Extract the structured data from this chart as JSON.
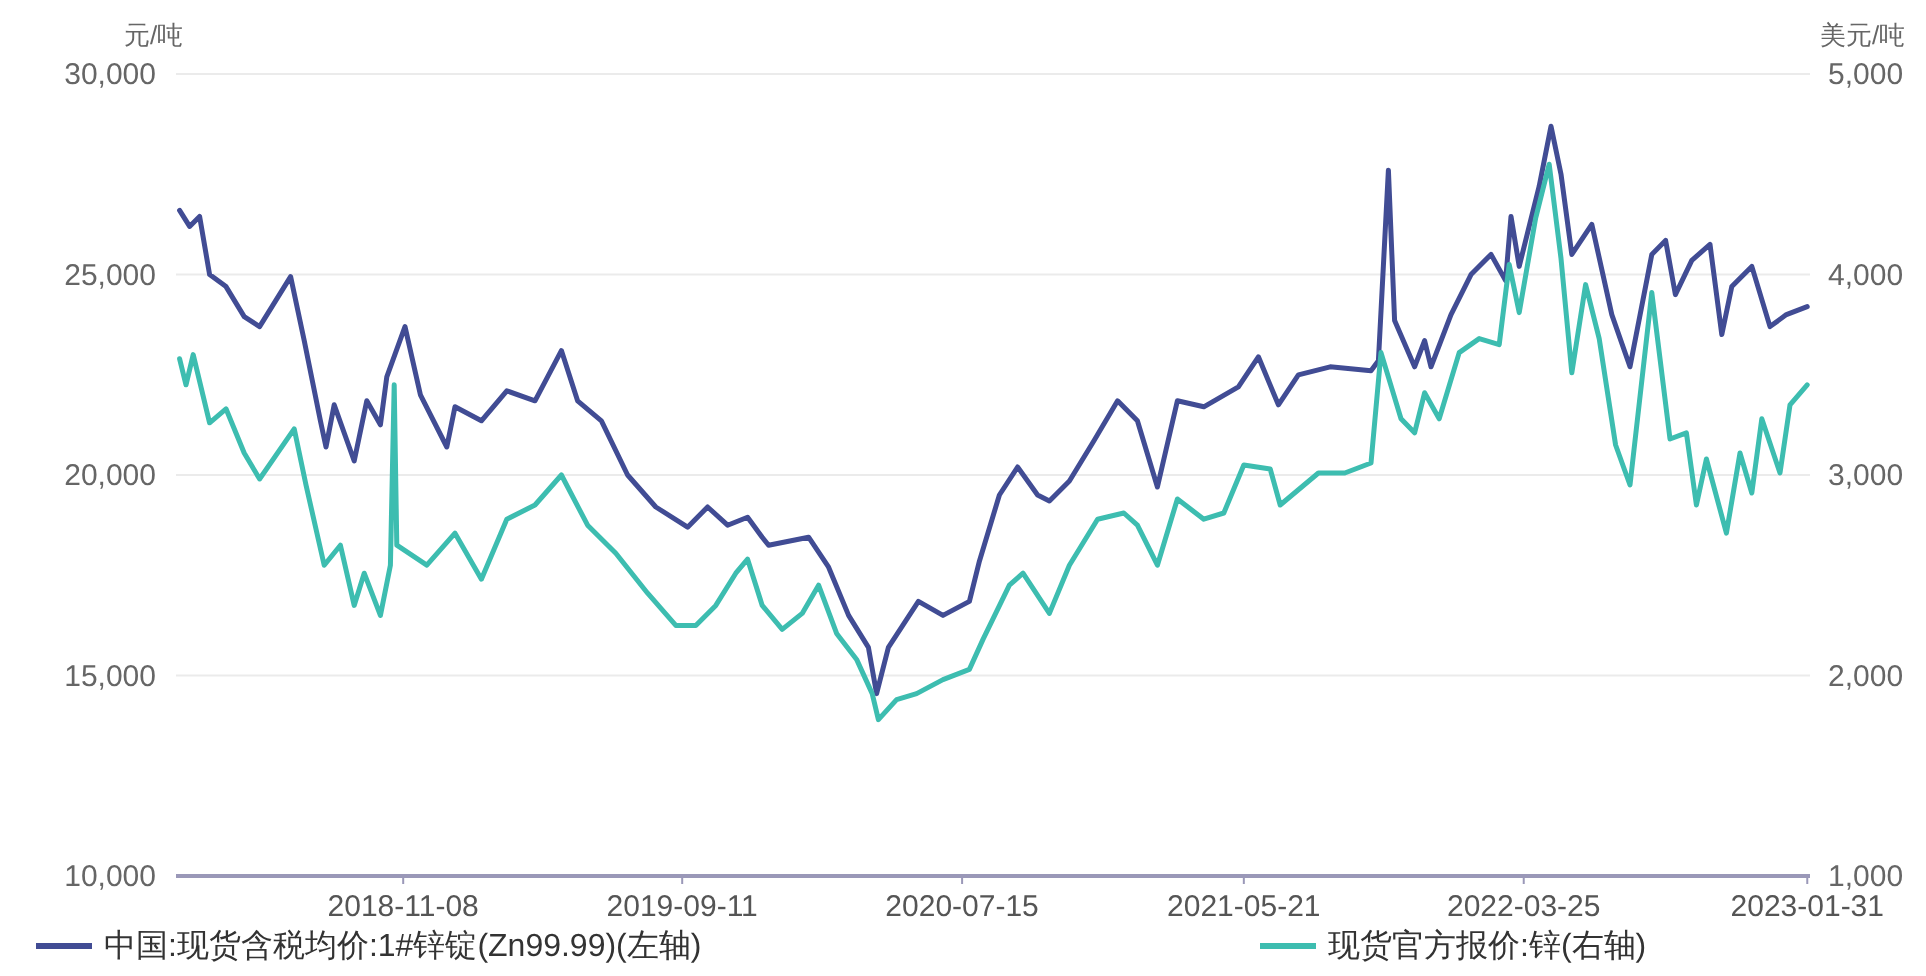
{
  "chart_data": {
    "type": "line",
    "ylabel": "元/吨",
    "y2label": "美元/吨",
    "xlim": [
      "2018-03-03",
      "2023-02-03"
    ],
    "xticks": [
      "2018-11-08",
      "2019-09-11",
      "2020-07-15",
      "2021-05-21",
      "2022-03-25",
      "2023-01-31"
    ],
    "ylim": [
      10000,
      30000
    ],
    "yticks": [
      {
        "value": 10000,
        "label": "10,000"
      },
      {
        "value": 15000,
        "label": "15,000"
      },
      {
        "value": 20000,
        "label": "20,000"
      },
      {
        "value": 25000,
        "label": "25,000"
      },
      {
        "value": 30000,
        "label": "30,000"
      }
    ],
    "y2lim": [
      1000,
      5000
    ],
    "y2ticks": [
      {
        "value": 1000,
        "label": "1,000"
      },
      {
        "value": 2000,
        "label": "2,000"
      },
      {
        "value": 3000,
        "label": "3,000"
      },
      {
        "value": 4000,
        "label": "4,000"
      },
      {
        "value": 5000,
        "label": "5,000"
      }
    ],
    "grid": "y",
    "legend": "bottom",
    "series": [
      {
        "name": "中国:现货含税均价:1#锌锭(Zn99.99)(左轴)",
        "color": "#414c94",
        "axis": "y",
        "x": [
          "2018-03-07",
          "2018-03-18",
          "2018-03-29",
          "2018-04-09",
          "2018-04-27",
          "2018-05-17",
          "2018-06-03",
          "2018-07-07",
          "2018-07-22",
          "2018-08-09",
          "2018-08-15",
          "2018-08-24",
          "2018-09-15",
          "2018-09-29",
          "2018-10-14",
          "2018-10-21",
          "2018-11-10",
          "2018-11-27",
          "2018-12-26",
          "2019-01-04",
          "2019-02-02",
          "2019-03-02",
          "2019-04-02",
          "2019-05-01",
          "2019-05-19",
          "2019-06-14",
          "2019-07-13",
          "2019-08-13",
          "2019-09-17",
          "2019-10-09",
          "2019-10-31",
          "2019-11-22",
          "2019-12-08",
          "2019-12-15",
          "2020-01-28",
          "2020-02-19",
          "2020-03-12",
          "2020-04-03",
          "2020-04-12",
          "2020-04-25",
          "2020-05-28",
          "2020-06-24",
          "2020-07-23",
          "2020-08-03",
          "2020-08-25",
          "2020-09-14",
          "2020-10-06",
          "2020-10-19",
          "2020-11-10",
          "2020-12-07",
          "2021-01-02",
          "2021-01-24",
          "2021-02-15",
          "2021-03-09",
          "2021-04-07",
          "2021-05-15",
          "2021-06-06",
          "2021-06-28",
          "2021-07-20",
          "2021-08-24",
          "2021-10-08",
          "2021-10-16",
          "2021-10-27",
          "2021-11-03",
          "2021-11-25",
          "2021-12-06",
          "2021-12-13",
          "2022-01-04",
          "2022-01-26",
          "2022-02-17",
          "2022-03-05",
          "2022-03-11",
          "2022-03-20",
          "2022-04-11",
          "2022-04-24",
          "2022-05-05",
          "2022-05-17",
          "2022-06-08",
          "2022-06-30",
          "2022-07-20",
          "2022-08-13",
          "2022-08-28",
          "2022-09-08",
          "2022-09-26",
          "2022-10-16",
          "2022-10-29",
          "2022-11-09",
          "2022-12-01",
          "2022-12-21",
          "2023-01-08",
          "2023-01-31"
        ],
        "values": [
          26600,
          26200,
          26450,
          25000,
          24700,
          23950,
          23700,
          24950,
          23350,
          21350,
          20700,
          21750,
          20350,
          21850,
          21250,
          22450,
          23700,
          22000,
          20700,
          21700,
          21350,
          22100,
          21850,
          23100,
          21850,
          21350,
          20000,
          19200,
          18700,
          19200,
          18750,
          18950,
          18450,
          18250,
          18450,
          17700,
          16500,
          15700,
          14550,
          15700,
          16850,
          16500,
          16850,
          17850,
          19500,
          20200,
          19500,
          19350,
          19850,
          20850,
          21850,
          21350,
          19700,
          21850,
          21700,
          22200,
          22950,
          21750,
          22500,
          22700,
          22600,
          22850,
          27600,
          23850,
          22700,
          23350,
          22700,
          24000,
          25000,
          25500,
          24850,
          26450,
          25200,
          27200,
          28700,
          27500,
          25500,
          26250,
          24000,
          22700,
          25500,
          25850,
          24500,
          25350,
          25750,
          23500,
          24700,
          25200,
          23700,
          24000,
          24200
        ]
      },
      {
        "name": "现货官方报价:锌(右轴)",
        "color": "#3dbdb0",
        "axis": "y2",
        "x": [
          "2018-03-07",
          "2018-03-14",
          "2018-03-22",
          "2018-04-09",
          "2018-04-27",
          "2018-05-17",
          "2018-06-03",
          "2018-07-11",
          "2018-07-24",
          "2018-08-13",
          "2018-08-31",
          "2018-09-15",
          "2018-09-26",
          "2018-10-14",
          "2018-10-25",
          "2018-10-29",
          "2018-11-01",
          "2018-12-04",
          "2019-01-04",
          "2019-02-02",
          "2019-03-02",
          "2019-04-02",
          "2019-05-01",
          "2019-05-30",
          "2019-06-30",
          "2019-08-04",
          "2019-09-04",
          "2019-09-26",
          "2019-10-18",
          "2019-11-09",
          "2019-11-22",
          "2019-12-08",
          "2019-12-30",
          "2020-01-21",
          "2020-02-08",
          "2020-02-28",
          "2020-03-21",
          "2020-04-07",
          "2020-04-14",
          "2020-05-04",
          "2020-05-26",
          "2020-06-24",
          "2020-07-23",
          "2020-08-07",
          "2020-09-05",
          "2020-09-20",
          "2020-10-19",
          "2020-11-10",
          "2020-12-11",
          "2021-01-09",
          "2021-01-24",
          "2021-02-15",
          "2021-03-09",
          "2021-04-07",
          "2021-04-29",
          "2021-05-21",
          "2021-06-19",
          "2021-06-30",
          "2021-08-11",
          "2021-09-09",
          "2021-10-08",
          "2021-10-19",
          "2021-11-10",
          "2021-11-25",
          "2021-12-06",
          "2021-12-22",
          "2022-01-13",
          "2022-02-04",
          "2022-02-26",
          "2022-03-09",
          "2022-03-20",
          "2022-04-07",
          "2022-04-22",
          "2022-05-05",
          "2022-05-17",
          "2022-06-01",
          "2022-06-16",
          "2022-07-04",
          "2022-07-20",
          "2022-08-13",
          "2022-09-02",
          "2022-09-20",
          "2022-10-01",
          "2022-10-12",
          "2022-11-03",
          "2022-11-18",
          "2022-12-01",
          "2022-12-12",
          "2023-01-01",
          "2023-01-12",
          "2023-01-31"
        ],
        "values": [
          3580,
          3450,
          3600,
          3260,
          3330,
          3110,
          2980,
          3230,
          2950,
          2550,
          2650,
          2350,
          2510,
          2300,
          2550,
          3450,
          2650,
          2550,
          2710,
          2480,
          2780,
          2850,
          3000,
          2750,
          2610,
          2410,
          2250,
          2250,
          2350,
          2510,
          2580,
          2350,
          2230,
          2310,
          2450,
          2210,
          2080,
          1910,
          1780,
          1880,
          1910,
          1980,
          2030,
          2180,
          2450,
          2510,
          2310,
          2550,
          2780,
          2810,
          2750,
          2550,
          2880,
          2780,
          2810,
          3050,
          3030,
          2850,
          3010,
          3010,
          3060,
          3610,
          3280,
          3210,
          3410,
          3280,
          3610,
          3680,
          3650,
          4050,
          3810,
          4280,
          4550,
          4080,
          3510,
          3950,
          3680,
          3150,
          2950,
          3910,
          3180,
          3210,
          2850,
          3080,
          2710,
          3110,
          2910,
          3280,
          3010,
          3350,
          3450
        ]
      }
    ]
  }
}
